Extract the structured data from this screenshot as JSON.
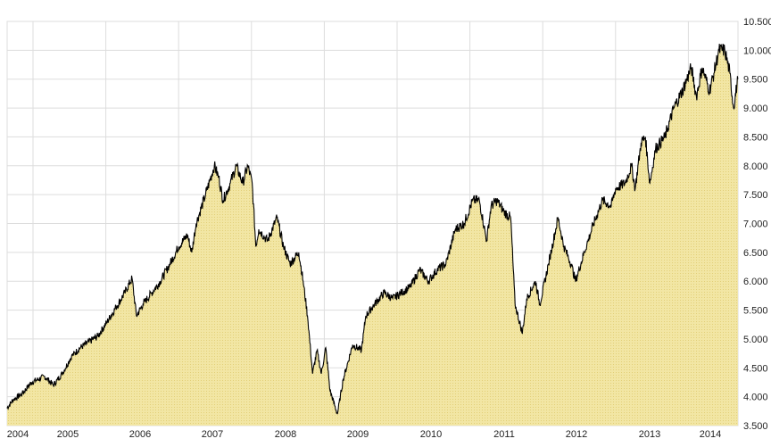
{
  "chart_data": {
    "type": "area",
    "title": "",
    "xlabel": "",
    "ylabel": "",
    "x_tick_labels": [
      "2004",
      "2005",
      "2006",
      "2007",
      "2008",
      "2009",
      "2010",
      "2011",
      "2012",
      "2013",
      "2014"
    ],
    "y_tick_labels": [
      "3.500",
      "4.000",
      "4.500",
      "5.000",
      "5.500",
      "6.000",
      "6.500",
      "7.000",
      "7.500",
      "8.000",
      "8.500",
      "9.000",
      "9.500",
      "10.000",
      "10.500"
    ],
    "ylim": [
      3500,
      10500
    ],
    "xlim": [
      2004.64,
      2014.68
    ],
    "y_axis_side": "right",
    "grid": true,
    "colors": {
      "line": "#000000",
      "fill": "#efe29a",
      "grid": "#dddddd"
    },
    "series": [
      {
        "x": [
          2004.64,
          2004.73,
          2004.85,
          2004.98,
          2005.16,
          2005.28,
          2005.4,
          2005.53,
          2005.65,
          2005.77,
          2005.89,
          2006.02,
          2006.14,
          2006.26,
          2006.36,
          2006.42,
          2006.51,
          2006.63,
          2006.75,
          2006.88,
          2007.0,
          2007.12,
          2007.18,
          2007.24,
          2007.37,
          2007.49,
          2007.55,
          2007.61,
          2007.71,
          2007.79,
          2007.88,
          2007.95,
          2008.01,
          2008.06,
          2008.1,
          2008.22,
          2008.35,
          2008.44,
          2008.53,
          2008.65,
          2008.71,
          2008.77,
          2008.84,
          2008.9,
          2008.96,
          2009.02,
          2009.08,
          2009.18,
          2009.26,
          2009.39,
          2009.51,
          2009.57,
          2009.69,
          2009.82,
          2009.94,
          2010.06,
          2010.18,
          2010.31,
          2010.43,
          2010.55,
          2010.67,
          2010.8,
          2010.92,
          2011.04,
          2011.13,
          2011.23,
          2011.29,
          2011.37,
          2011.47,
          2011.56,
          2011.62,
          2011.72,
          2011.78,
          2011.9,
          2011.96,
          2012.08,
          2012.21,
          2012.29,
          2012.39,
          2012.45,
          2012.57,
          2012.7,
          2012.82,
          2012.94,
          2013.0,
          2013.13,
          2013.22,
          2013.27,
          2013.35,
          2013.41,
          2013.47,
          2013.55,
          2013.68,
          2013.8,
          2013.92,
          2014.04,
          2014.11,
          2014.19,
          2014.29,
          2014.35,
          2014.42,
          2014.5,
          2014.57,
          2014.62,
          2014.68
        ],
        "values": [
          3800,
          3950,
          4050,
          4250,
          4350,
          4200,
          4400,
          4700,
          4850,
          4950,
          5050,
          5300,
          5550,
          5800,
          6050,
          5400,
          5600,
          5800,
          6000,
          6300,
          6600,
          6800,
          6500,
          7000,
          7500,
          8000,
          7800,
          7400,
          7700,
          8000,
          7700,
          8000,
          7700,
          6600,
          6900,
          6700,
          7100,
          6600,
          6300,
          6500,
          6000,
          5400,
          4400,
          4800,
          4400,
          4850,
          4100,
          3700,
          4300,
          4900,
          4800,
          5400,
          5600,
          5800,
          5700,
          5800,
          5900,
          6200,
          6000,
          6200,
          6300,
          6900,
          7000,
          7400,
          7400,
          6700,
          7300,
          7400,
          7200,
          7100,
          5600,
          5100,
          5700,
          6000,
          5600,
          6300,
          7100,
          6600,
          6300,
          6000,
          6500,
          7000,
          7400,
          7300,
          7600,
          7700,
          8000,
          7600,
          8400,
          8500,
          7700,
          8300,
          8500,
          9000,
          9300,
          9700,
          9200,
          9700,
          9300,
          9600,
          10000,
          10000,
          9600,
          9000,
          9500
        ]
      }
    ]
  }
}
